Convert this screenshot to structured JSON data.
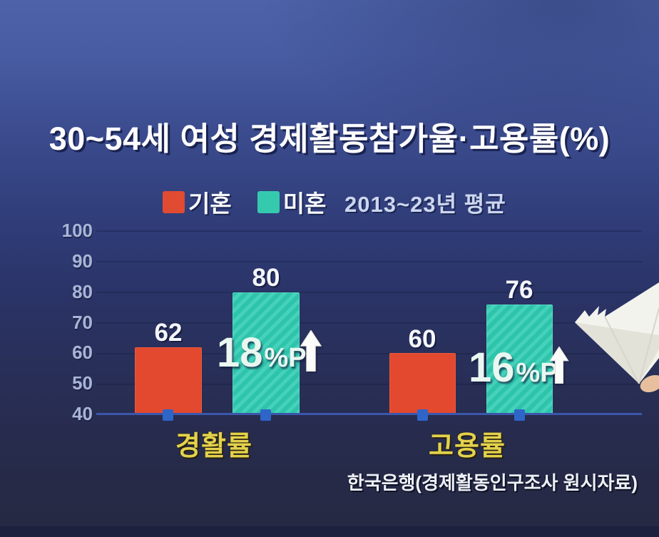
{
  "title": "30~54세 여성 경제활동참가율·고용률(%)",
  "subtitle": "2013~23년 평균",
  "source": "한국은행(경제활동인구조사 원시자료)",
  "legend": {
    "married": "기혼",
    "single": "미혼"
  },
  "y_axis": {
    "ticks": [
      40,
      50,
      60,
      70,
      80,
      90,
      100
    ]
  },
  "chart_data": {
    "type": "bar",
    "title": "30~54세 여성 경제활동참가율·고용률(%)",
    "subtitle": "2013~23년 평균",
    "categories": [
      "경활률",
      "고용률"
    ],
    "series": [
      {
        "name": "기혼",
        "values": [
          62,
          60
        ]
      },
      {
        "name": "미혼",
        "values": [
          80,
          76
        ]
      }
    ],
    "diffs": [
      {
        "big": "18",
        "unit": "%P",
        "direction": "up"
      },
      {
        "big": "16",
        "unit": "%P",
        "direction": "up"
      }
    ],
    "ylim": [
      40,
      100
    ],
    "y_ticks": [
      40,
      50,
      60,
      70,
      80,
      90,
      100
    ],
    "legend_position": "top",
    "grid": "faint-horizontal",
    "source": "한국은행(경제활동인구조사 원시자료)"
  },
  "colors": {
    "married_bar": "#e2492f",
    "single_bar": "#2dc4ab",
    "single_bar_stripe": "#46d1ba",
    "axis_line": "#3b57ac",
    "base_tick": "#2e65c9",
    "category_label": "#e3d24b",
    "value_label": "#f4f6fc",
    "y_label": "#a9b5d6",
    "background_top": "#4d62a9",
    "background_bottom": "#252943"
  }
}
